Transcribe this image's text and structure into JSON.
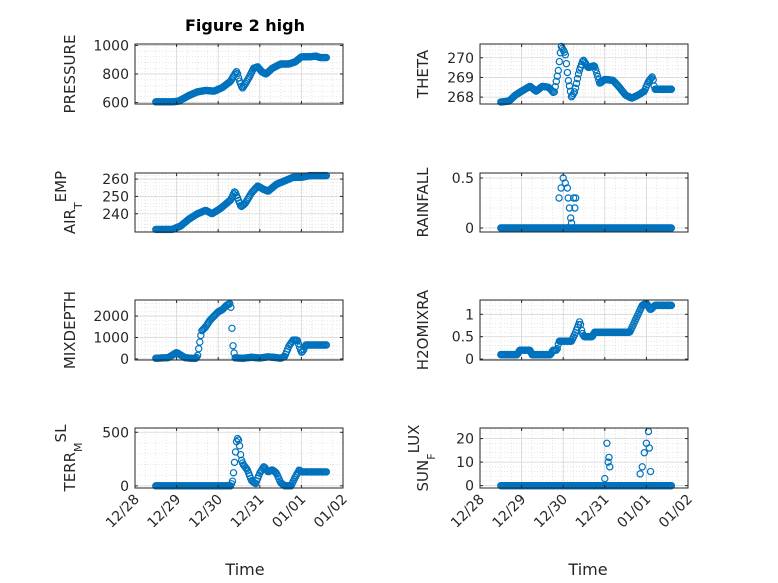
{
  "figure": {
    "title": "Figure 2 high",
    "xlabel": "Time"
  },
  "colors": {
    "marker": "#0072BD",
    "axis": "#262626",
    "grid": "#d6d6d6",
    "background": "#ffffff"
  },
  "chart_data": [
    {
      "type": "scatter",
      "name": "pressure",
      "ylabel": "PRESSURE",
      "ylim": [
        590,
        1010
      ],
      "yticks": [
        600,
        800,
        1000
      ],
      "ytick_labels": [
        "600",
        "800",
        "1000"
      ],
      "xlim": [
        0,
        5
      ],
      "xticks": [
        0,
        1,
        2,
        3,
        4,
        5
      ],
      "xtick_labels": [
        "12/28",
        "12/29",
        "12/30",
        "12/31",
        "01/01",
        "01/02"
      ],
      "gen": {
        "t0": 0.5,
        "t1": 4.6,
        "n": 170,
        "knots": [
          [
            0.5,
            605
          ],
          [
            0.9,
            605
          ],
          [
            1.05,
            610
          ],
          [
            1.3,
            650
          ],
          [
            1.5,
            675
          ],
          [
            1.7,
            685
          ],
          [
            1.9,
            680
          ],
          [
            2.1,
            705
          ],
          [
            2.3,
            750
          ],
          [
            2.4,
            800
          ],
          [
            2.45,
            820
          ],
          [
            2.5,
            760
          ],
          [
            2.58,
            700
          ],
          [
            2.65,
            730
          ],
          [
            2.75,
            780
          ],
          [
            2.85,
            840
          ],
          [
            2.95,
            850
          ],
          [
            3.05,
            815
          ],
          [
            3.15,
            800
          ],
          [
            3.3,
            840
          ],
          [
            3.5,
            870
          ],
          [
            3.7,
            870
          ],
          [
            3.85,
            885
          ],
          [
            4.0,
            920
          ],
          [
            4.2,
            920
          ],
          [
            4.35,
            925
          ],
          [
            4.45,
            915
          ],
          [
            4.6,
            915
          ]
        ]
      }
    },
    {
      "type": "scatter",
      "name": "theta",
      "ylabel": "THETA",
      "ylim": [
        267.65,
        270.7
      ],
      "yticks": [
        268,
        269,
        270
      ],
      "ytick_labels": [
        "268",
        "269",
        "270"
      ],
      "xlim": [
        0,
        5
      ],
      "xticks": [
        0,
        1,
        2,
        3,
        4,
        5
      ],
      "xtick_labels": [
        "12/28",
        "12/29",
        "12/30",
        "12/31",
        "01/01",
        "01/02"
      ],
      "gen": {
        "t0": 0.5,
        "t1": 4.6,
        "n": 170,
        "knots": [
          [
            0.5,
            267.75
          ],
          [
            0.7,
            267.8
          ],
          [
            0.85,
            268.1
          ],
          [
            1.0,
            268.3
          ],
          [
            1.2,
            268.55
          ],
          [
            1.35,
            268.3
          ],
          [
            1.5,
            268.55
          ],
          [
            1.65,
            268.5
          ],
          [
            1.78,
            268.2
          ],
          [
            1.88,
            269.3
          ],
          [
            1.95,
            270.6
          ],
          [
            2.05,
            270.2
          ],
          [
            2.12,
            268.9
          ],
          [
            2.2,
            268.0
          ],
          [
            2.28,
            268.3
          ],
          [
            2.38,
            269.3
          ],
          [
            2.48,
            269.9
          ],
          [
            2.6,
            269.5
          ],
          [
            2.75,
            269.6
          ],
          [
            2.88,
            268.7
          ],
          [
            3.0,
            268.9
          ],
          [
            3.2,
            268.85
          ],
          [
            3.35,
            268.5
          ],
          [
            3.5,
            268.1
          ],
          [
            3.65,
            267.95
          ],
          [
            3.8,
            268.1
          ],
          [
            3.95,
            268.3
          ],
          [
            4.05,
            268.8
          ],
          [
            4.15,
            269.05
          ],
          [
            4.2,
            268.4
          ]
        ]
      }
    },
    {
      "type": "scatter",
      "name": "air-temp",
      "ylabel": "AIR_TEMP",
      "ylim": [
        229.5,
        263.5
      ],
      "yticks": [
        240,
        250,
        260
      ],
      "ytick_labels": [
        "240",
        "250",
        "260"
      ],
      "xlim": [
        0,
        5
      ],
      "xticks": [
        0,
        1,
        2,
        3,
        4,
        5
      ],
      "xtick_labels": [
        "12/28",
        "12/29",
        "12/30",
        "12/31",
        "01/01",
        "01/02"
      ],
      "gen": {
        "t0": 0.5,
        "t1": 4.6,
        "n": 170,
        "knots": [
          [
            0.5,
            231
          ],
          [
            0.9,
            231
          ],
          [
            1.1,
            233
          ],
          [
            1.3,
            237
          ],
          [
            1.5,
            240
          ],
          [
            1.7,
            242
          ],
          [
            1.85,
            240
          ],
          [
            2.05,
            243
          ],
          [
            2.3,
            248
          ],
          [
            2.4,
            253
          ],
          [
            2.45,
            250
          ],
          [
            2.55,
            244
          ],
          [
            2.65,
            246
          ],
          [
            2.8,
            252
          ],
          [
            2.95,
            256
          ],
          [
            3.1,
            254
          ],
          [
            3.2,
            253
          ],
          [
            3.4,
            257
          ],
          [
            3.6,
            259
          ],
          [
            3.8,
            261
          ],
          [
            4.0,
            261
          ],
          [
            4.2,
            262
          ],
          [
            4.4,
            262
          ],
          [
            4.6,
            262
          ]
        ]
      }
    },
    {
      "type": "scatter",
      "name": "rainfall",
      "ylabel": "RAINFALL",
      "ylim": [
        -0.04,
        0.55
      ],
      "yticks": [
        0,
        0.5
      ],
      "ytick_labels": [
        "0",
        "0.5"
      ],
      "xlim": [
        0,
        5
      ],
      "xticks": [
        0,
        1,
        2,
        3,
        4,
        5
      ],
      "xtick_labels": [
        "12/28",
        "12/29",
        "12/30",
        "12/31",
        "01/01",
        "01/02"
      ],
      "points": [
        [
          1.9,
          0.3
        ],
        [
          1.95,
          0.4
        ],
        [
          2.0,
          0.5
        ],
        [
          2.05,
          0.45
        ],
        [
          2.1,
          0.4
        ],
        [
          2.12,
          0.3
        ],
        [
          2.15,
          0.2
        ],
        [
          2.18,
          0.1
        ],
        [
          2.2,
          0.05
        ],
        [
          2.25,
          0.3
        ],
        [
          2.3,
          0.3
        ],
        [
          2.28,
          0.2
        ],
        [
          2.1,
          0.0
        ]
      ],
      "gen": {
        "t0": 0.5,
        "t1": 4.6,
        "n": 170,
        "knots": [
          [
            0.5,
            0
          ],
          [
            4.6,
            0
          ]
        ]
      }
    },
    {
      "type": "scatter",
      "name": "mixdepth",
      "ylabel": "MIXDEPTH",
      "ylim": [
        -50,
        2750
      ],
      "yticks": [
        0,
        1000,
        2000
      ],
      "ytick_labels": [
        "0",
        "1000",
        "2000"
      ],
      "xlim": [
        0,
        5
      ],
      "xticks": [
        0,
        1,
        2,
        3,
        4,
        5
      ],
      "xtick_labels": [
        "12/28",
        "12/29",
        "12/30",
        "12/31",
        "01/01",
        "01/02"
      ],
      "gen": {
        "t0": 0.5,
        "t1": 4.6,
        "n": 160,
        "knots": [
          [
            0.5,
            30
          ],
          [
            0.8,
            60
          ],
          [
            1.0,
            300
          ],
          [
            1.1,
            180
          ],
          [
            1.2,
            60
          ],
          [
            1.35,
            30
          ],
          [
            1.45,
            20
          ],
          [
            1.5,
            100
          ],
          [
            1.55,
            700
          ],
          [
            1.6,
            1300
          ],
          [
            1.7,
            1500
          ],
          [
            1.8,
            1800
          ],
          [
            1.9,
            2000
          ],
          [
            2.0,
            2200
          ],
          [
            2.1,
            2300
          ],
          [
            2.2,
            2500
          ],
          [
            2.3,
            2600
          ],
          [
            2.35,
            700
          ],
          [
            2.4,
            50
          ],
          [
            2.6,
            30
          ],
          [
            2.8,
            80
          ],
          [
            3.0,
            40
          ],
          [
            3.2,
            100
          ],
          [
            3.4,
            60
          ],
          [
            3.5,
            30
          ],
          [
            3.6,
            120
          ],
          [
            3.7,
            600
          ],
          [
            3.8,
            880
          ],
          [
            3.9,
            880
          ],
          [
            4.0,
            300
          ],
          [
            4.05,
            400
          ],
          [
            4.1,
            650
          ]
        ]
      }
    },
    {
      "type": "scatter",
      "name": "h2omixra",
      "ylabel": "H2OMIXRA",
      "ylim": [
        -0.02,
        1.32
      ],
      "yticks": [
        0,
        0.5,
        1
      ],
      "ytick_labels": [
        "0",
        "0.5",
        "1"
      ],
      "xlim": [
        0,
        5
      ],
      "xticks": [
        0,
        1,
        2,
        3,
        4,
        5
      ],
      "xtick_labels": [
        "12/28",
        "12/29",
        "12/30",
        "12/31",
        "01/01",
        "01/02"
      ],
      "gen": {
        "t0": 0.5,
        "t1": 4.6,
        "n": 170,
        "knots": [
          [
            0.5,
            0.1
          ],
          [
            0.9,
            0.1
          ],
          [
            0.95,
            0.2
          ],
          [
            1.2,
            0.2
          ],
          [
            1.25,
            0.1
          ],
          [
            1.7,
            0.1
          ],
          [
            1.75,
            0.2
          ],
          [
            1.85,
            0.2
          ],
          [
            1.9,
            0.4
          ],
          [
            2.2,
            0.4
          ],
          [
            2.3,
            0.6
          ],
          [
            2.4,
            0.85
          ],
          [
            2.45,
            0.6
          ],
          [
            2.5,
            0.5
          ],
          [
            2.7,
            0.5
          ],
          [
            2.75,
            0.6
          ],
          [
            3.6,
            0.6
          ],
          [
            3.7,
            0.8
          ],
          [
            3.8,
            1.0
          ],
          [
            3.9,
            1.2
          ],
          [
            4.0,
            1.25
          ],
          [
            4.1,
            1.1
          ],
          [
            4.2,
            1.2
          ]
        ]
      }
    },
    {
      "type": "scatter",
      "name": "terr-msl",
      "ylabel": "TERR_MSL",
      "ylim": [
        -20,
        540
      ],
      "yticks": [
        0,
        500
      ],
      "ytick_labels": [
        "0",
        "500"
      ],
      "xlim": [
        0,
        5
      ],
      "xticks": [
        0,
        1,
        2,
        3,
        4,
        5
      ],
      "xtick_labels": [
        "12/28",
        "12/29",
        "12/30",
        "12/31",
        "01/01",
        "01/02"
      ],
      "gen": {
        "t0": 0.5,
        "t1": 4.6,
        "n": 170,
        "knots": [
          [
            0.5,
            0
          ],
          [
            2.3,
            0
          ],
          [
            2.35,
            50
          ],
          [
            2.4,
            250
          ],
          [
            2.45,
            450
          ],
          [
            2.5,
            420
          ],
          [
            2.55,
            250
          ],
          [
            2.6,
            200
          ],
          [
            2.7,
            150
          ],
          [
            2.8,
            50
          ],
          [
            2.9,
            20
          ],
          [
            3.0,
            120
          ],
          [
            3.1,
            180
          ],
          [
            3.2,
            130
          ],
          [
            3.3,
            150
          ],
          [
            3.4,
            120
          ],
          [
            3.5,
            30
          ],
          [
            3.6,
            0
          ],
          [
            3.75,
            0
          ],
          [
            3.85,
            80
          ],
          [
            3.95,
            150
          ],
          [
            4.0,
            130
          ]
        ]
      }
    },
    {
      "type": "scatter",
      "name": "sun-flux",
      "ylabel": "SUN_FLUX",
      "ylim": [
        -1,
        24.5
      ],
      "yticks": [
        0,
        10,
        20
      ],
      "ytick_labels": [
        "0",
        "10",
        "20"
      ],
      "xlim": [
        0,
        5
      ],
      "xticks": [
        0,
        1,
        2,
        3,
        4,
        5
      ],
      "xtick_labels": [
        "12/28",
        "12/29",
        "12/30",
        "12/31",
        "01/01",
        "01/02"
      ],
      "points": [
        [
          3.0,
          3
        ],
        [
          3.05,
          18
        ],
        [
          3.1,
          12
        ],
        [
          3.12,
          8
        ],
        [
          3.08,
          10
        ],
        [
          3.85,
          5
        ],
        [
          3.9,
          8
        ],
        [
          3.95,
          14
        ],
        [
          4.0,
          18
        ],
        [
          4.05,
          23
        ],
        [
          4.1,
          6
        ],
        [
          4.12,
          0
        ],
        [
          4.07,
          16
        ]
      ],
      "gen": {
        "t0": 0.5,
        "t1": 4.6,
        "n": 170,
        "knots": [
          [
            0.5,
            0
          ],
          [
            4.6,
            0
          ]
        ]
      }
    }
  ]
}
